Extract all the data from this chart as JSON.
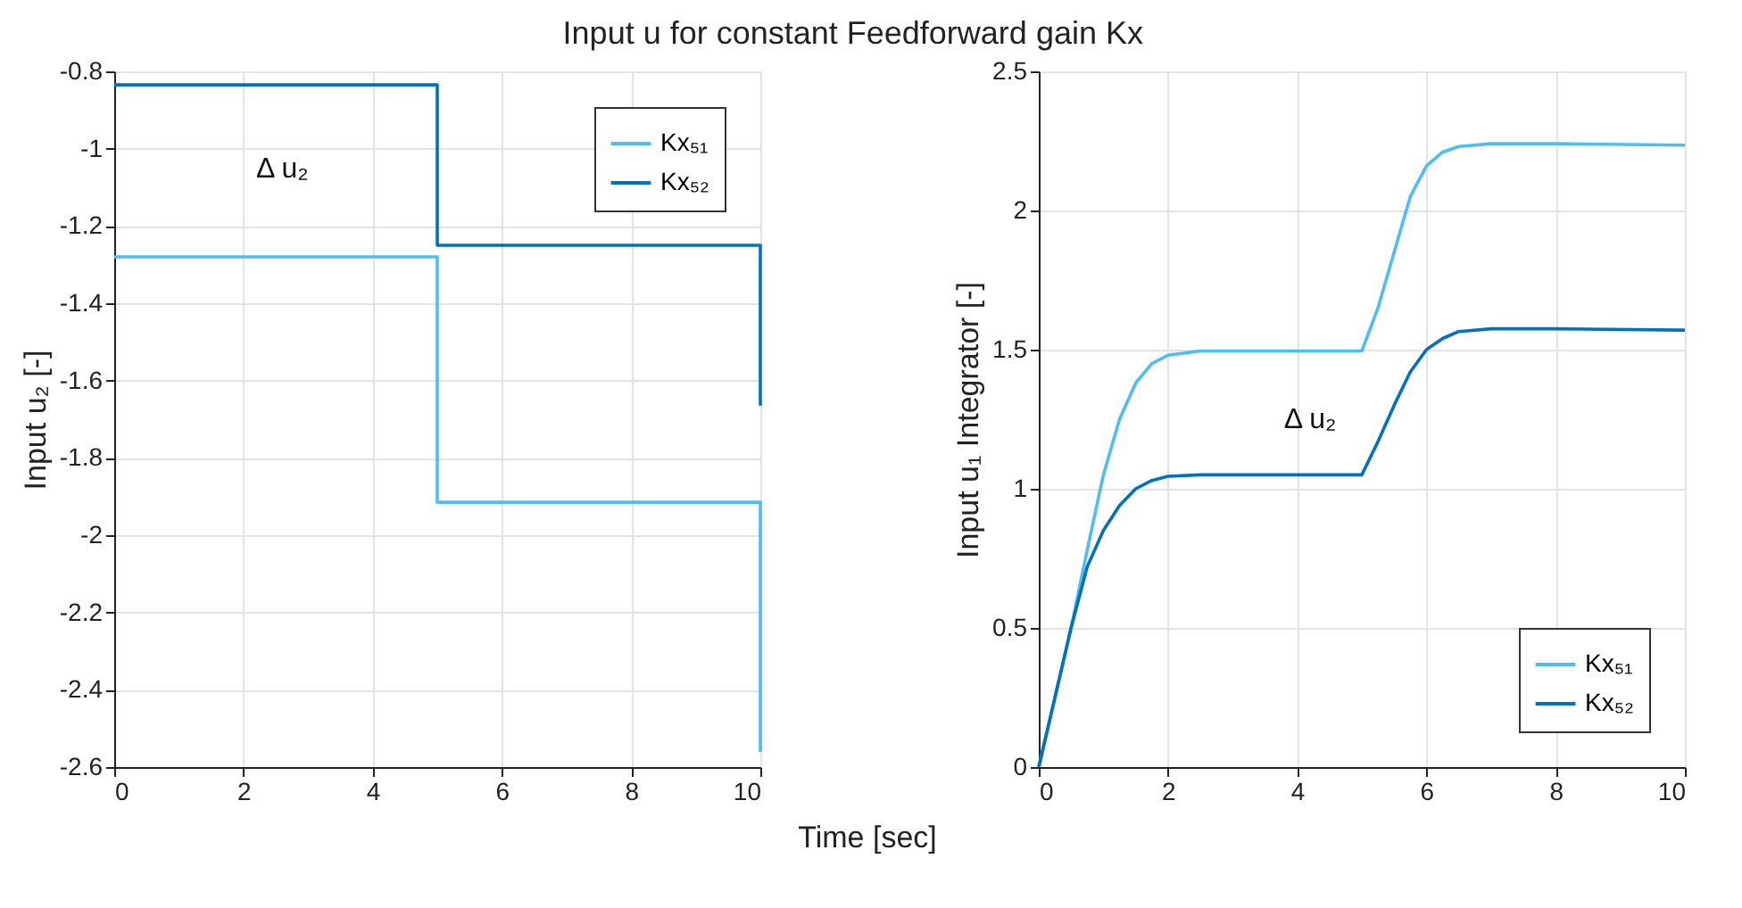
{
  "chart_data": [
    {
      "type": "line",
      "title": "Input u  for constant Feedforward gain Kx",
      "xlabel": "Time [sec]",
      "ylabel": "Input u₂ [-]",
      "xlim": [
        0,
        10
      ],
      "xticks": [
        0,
        2,
        4,
        6,
        8,
        10
      ],
      "ylim": [
        -2.6,
        -0.8
      ],
      "yticks": [
        -2.6,
        -2.4,
        -2.2,
        -2,
        -1.8,
        -1.6,
        -1.4,
        -1.2,
        -1,
        -0.8
      ],
      "grid": true,
      "legend": "top right",
      "series": [
        {
          "name": "Kx₅₁",
          "color": "#4dbeee",
          "x": [
            0,
            5,
            5,
            10,
            10
          ],
          "values": [
            -1.28,
            -1.28,
            -1.915,
            -1.915,
            -2.56
          ]
        },
        {
          "name": "Kx₅₂",
          "color": "#0072bd",
          "x": [
            0,
            5,
            5,
            10,
            10
          ],
          "values": [
            -0.835,
            -0.835,
            -1.25,
            -1.25,
            -1.665
          ]
        }
      ],
      "annotations": [
        "Δ u₂"
      ]
    },
    {
      "type": "line",
      "ylabel": "Input u₁ Integrator [-]",
      "xlim": [
        0,
        10
      ],
      "xticks": [
        0,
        2,
        4,
        6,
        8,
        10
      ],
      "ylim": [
        0,
        2.5
      ],
      "yticks": [
        0,
        0.5,
        1,
        1.5,
        2,
        2.5
      ],
      "grid": true,
      "legend": "bottom right",
      "series": [
        {
          "name": "Kx₅₁",
          "color": "#4dbeee",
          "x": [
            0,
            0.25,
            0.5,
            0.75,
            1,
            1.25,
            1.5,
            1.75,
            2,
            2.5,
            3,
            5,
            5.25,
            5.5,
            5.75,
            6,
            6.25,
            6.5,
            7,
            8,
            10
          ],
          "values": [
            0,
            0.25,
            0.5,
            0.78,
            1.05,
            1.25,
            1.38,
            1.45,
            1.48,
            1.495,
            1.495,
            1.495,
            1.65,
            1.85,
            2.05,
            2.16,
            2.21,
            2.23,
            2.24,
            2.24,
            2.235
          ]
        },
        {
          "name": "Kx₅₂",
          "color": "#0072bd",
          "x": [
            0,
            0.5,
            0.75,
            1,
            1.25,
            1.5,
            1.75,
            2,
            2.5,
            5,
            5.25,
            5.5,
            5.75,
            6,
            6.25,
            6.5,
            7,
            8,
            10
          ],
          "values": [
            0,
            0.5,
            0.72,
            0.85,
            0.94,
            1.0,
            1.03,
            1.045,
            1.05,
            1.05,
            1.17,
            1.3,
            1.42,
            1.5,
            1.54,
            1.565,
            1.575,
            1.575,
            1.57
          ]
        }
      ],
      "annotations": [
        "Δ u₂"
      ]
    }
  ]
}
